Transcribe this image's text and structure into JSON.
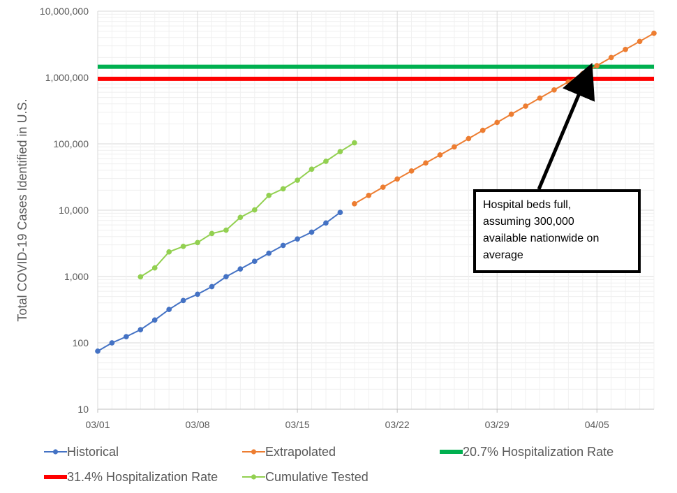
{
  "chart_data": {
    "type": "line",
    "xlabel": "",
    "ylabel": "Total COVID-19 Cases Identified in U.S.",
    "yscale": "log",
    "ylim": [
      10,
      10000000
    ],
    "y_tick_labels": [
      "10",
      "100",
      "1,000",
      "10,000",
      "100,000",
      "1,000,000",
      "10,000,000"
    ],
    "x_domain": [
      "2020-03-01",
      "2020-04-09"
    ],
    "x_tick_labels": [
      "03/01",
      "03/08",
      "03/15",
      "03/22",
      "03/29",
      "04/05"
    ],
    "grid": true,
    "legend_position": "bottom",
    "series": [
      {
        "name": "Historical",
        "color": "#4472C4",
        "x": [
          "2020-03-01",
          "2020-03-02",
          "2020-03-03",
          "2020-03-04",
          "2020-03-05",
          "2020-03-06",
          "2020-03-07",
          "2020-03-08",
          "2020-03-09",
          "2020-03-10",
          "2020-03-11",
          "2020-03-12",
          "2020-03-13",
          "2020-03-14",
          "2020-03-15",
          "2020-03-16",
          "2020-03-17",
          "2020-03-18"
        ],
        "y": [
          75,
          100,
          124,
          158,
          221,
          319,
          435,
          541,
          704,
          994,
          1301,
          1697,
          2247,
          2943,
          3680,
          4663,
          6411,
          9259
        ]
      },
      {
        "name": "Extrapolated",
        "color": "#ED7D31",
        "x": [
          "2020-03-19",
          "2020-03-20",
          "2020-03-21",
          "2020-03-22",
          "2020-03-23",
          "2020-03-24",
          "2020-03-25",
          "2020-03-26",
          "2020-03-27",
          "2020-03-28",
          "2020-03-29",
          "2020-03-30",
          "2020-03-31",
          "2020-04-01",
          "2020-04-02",
          "2020-04-03",
          "2020-04-04",
          "2020-04-05",
          "2020-04-06",
          "2020-04-07",
          "2020-04-08",
          "2020-04-09"
        ],
        "y": [
          12500,
          16700,
          22200,
          29500,
          39000,
          51500,
          68000,
          90000,
          120000,
          160000,
          210000,
          280000,
          370000,
          490000,
          650000,
          860000,
          1140000,
          1510000,
          2000000,
          2650000,
          3500000,
          4650000
        ]
      },
      {
        "name": "20.7% Hospitalization Rate",
        "color": "#00B050",
        "constant_y": 1450000
      },
      {
        "name": "31.4% Hospitalization Rate",
        "color": "#FF0000",
        "constant_y": 955000
      },
      {
        "name": "Cumulative Tested",
        "color": "#92D050",
        "x": [
          "2020-03-04",
          "2020-03-05",
          "2020-03-06",
          "2020-03-07",
          "2020-03-08",
          "2020-03-09",
          "2020-03-10",
          "2020-03-11",
          "2020-03-12",
          "2020-03-13",
          "2020-03-14",
          "2020-03-15",
          "2020-03-16",
          "2020-03-17",
          "2020-03-18",
          "2020-03-19"
        ],
        "y": [
          990,
          1350,
          2350,
          2850,
          3250,
          4450,
          5000,
          7800,
          10100,
          16700,
          21000,
          28300,
          41500,
          54600,
          76500,
          103700
        ]
      }
    ],
    "annotation": {
      "lines": [
        "Hospital beds full,",
        "assuming 300,000",
        "available nationwide on",
        "average"
      ],
      "arrow_target_x": "2020-04-04",
      "arrow_target_y": 1000000
    }
  }
}
